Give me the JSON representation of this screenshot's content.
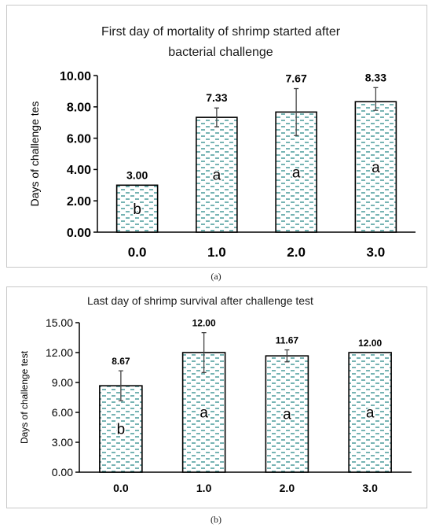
{
  "chart_data": [
    {
      "type": "bar",
      "title_lines": [
        "First day of mortality of shrimp started after",
        "bacterial challenge"
      ],
      "xlabel": "",
      "ylabel": "Days of challenge tes",
      "categories": [
        "0.0",
        "1.0",
        "2.0",
        "3.0"
      ],
      "values": [
        3.0,
        7.33,
        7.67,
        8.33
      ],
      "value_labels": [
        "3.00",
        "7.33",
        "7.67",
        "8.33"
      ],
      "error_low": [
        0.0,
        0.6,
        1.5,
        0.55
      ],
      "error_high": [
        0.0,
        0.6,
        1.5,
        0.9
      ],
      "letters": [
        "b",
        "a",
        "a",
        "a"
      ],
      "ylim": [
        0,
        10
      ],
      "yticks": [
        "0.00",
        "2.00",
        "4.00",
        "6.00",
        "8.00",
        "10.00"
      ],
      "grid": false,
      "bar_pattern": "teal dashes on white",
      "pattern_color": "#2e8b8b",
      "caption": "(a)"
    },
    {
      "type": "bar",
      "title_lines": [
        "Last day of shrimp survival after challenge test"
      ],
      "xlabel": "",
      "ylabel": "Days of challenge test",
      "categories": [
        "0.0",
        "1.0",
        "2.0",
        "3.0"
      ],
      "values": [
        8.67,
        12.0,
        11.67,
        12.0
      ],
      "value_labels": [
        "8.67",
        "12.00",
        "11.67",
        "12.00"
      ],
      "error_low": [
        1.5,
        2.0,
        0.6,
        0.0
      ],
      "error_high": [
        1.5,
        2.0,
        0.6,
        0.0
      ],
      "letters": [
        "b",
        "a",
        "a",
        "a"
      ],
      "ylim": [
        0,
        15
      ],
      "yticks": [
        "0.00",
        "3.00",
        "6.00",
        "9.00",
        "12.00",
        "15.00"
      ],
      "grid": false,
      "bar_pattern": "teal dashes on white",
      "pattern_color": "#2e8b8b",
      "caption": "(b)"
    }
  ]
}
